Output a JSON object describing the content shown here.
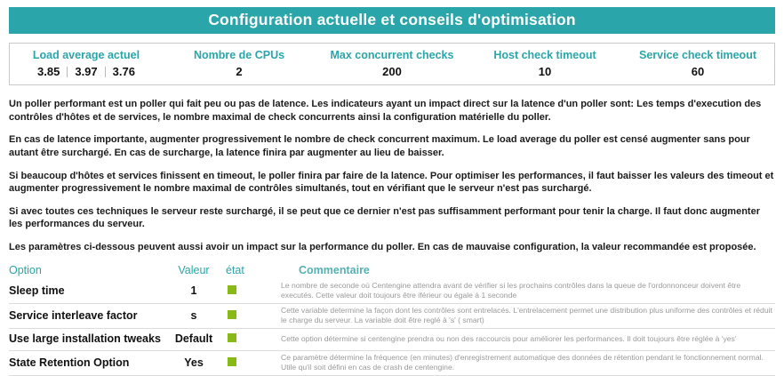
{
  "header": {
    "title": "Configuration actuelle et conseils d'optimisation"
  },
  "metrics": {
    "load_average": {
      "label": "Load average actuel",
      "values": [
        "3.85",
        "3.97",
        "3.76"
      ]
    },
    "cpus": {
      "label": "Nombre de CPUs",
      "value": "2"
    },
    "max_checks": {
      "label": "Max concurrent checks",
      "value": "200"
    },
    "host_timeout": {
      "label": "Host check timeout",
      "value": "10"
    },
    "service_timeout": {
      "label": "Service check timeout",
      "value": "60"
    }
  },
  "paragraphs": {
    "p1": "Un poller performant est un poller qui fait peu ou pas de latence. Les indicateurs ayant un impact direct sur la latence d'un poller sont: Les temps d'execution des contrôles d'hôtes et de services, le nombre maximal de check concurrents ainsi la configuration matérielle du poller.",
    "p2": "En cas de latence importante, augmenter progressivement le nombre de check concurrent maximum. Le load average du poller est censé augmenter sans pour autant être surchargé. En cas de surcharge, la latence finira par augmenter au lieu de baisser.",
    "p3": "Si beaucoup d'hôtes et services finissent en timeout, le poller finira par faire de la latence. Pour optimiser les performances, il faut baisser les valeurs des timeout et augmenter progressivement le nombre maximal de contrôles simultanés, tout en vérifiant que le serveur n'est pas surchargé.",
    "p4": "Si avec toutes ces techniques le serveur reste surchargé, il se peut que ce dernier n'est pas suffisamment performant pour tenir la charge. Il faut donc augmenter les performances du serveur.",
    "p5": "Les paramètres ci-dessous peuvent aussi avoir un impact sur la performance du poller. En cas de mauvaise configuration, la valeur recommandée est proposée."
  },
  "options": {
    "headers": {
      "option": "Option",
      "valeur": "Valeur",
      "etat": "état",
      "commentaire": "Commentaire"
    },
    "rows": [
      {
        "option": "Sleep time",
        "valeur": "1",
        "status": "ok",
        "commentaire": "Le nombre de seconde où Centengine attendra avant de vérifier si les prochains contrôles dans la queue de l'ordonnonceur doivent être executés. Cette valeur doit toujours être iférieur ou égale à 1 seconde"
      },
      {
        "option": "Service interleave factor",
        "valeur": "s",
        "status": "ok",
        "commentaire": "Cette variable determine la façon dont les contrôles sont entrelacés. L'entrelacement permet une distribution plus uniforme des contrôles et réduit le charge du serveur. La variable doit être reglé à 's' ( smart)"
      },
      {
        "option": "Use large installation tweaks",
        "valeur": "Default",
        "status": "ok",
        "commentaire": "Cette option détermine si centengine prendra ou non des raccourcis pour améliorer les performances. Il doit toujours être réglée à 'yes'"
      },
      {
        "option": "State Retention Option",
        "valeur": "Yes",
        "status": "ok",
        "commentaire": "Ce paramètre détermine la fréquence (en minutes) d'enregistrement automatique des données de rétention pendant le fonctionnement normal. Utile qu'il soit défini en cas de crash de centengine."
      }
    ]
  },
  "colors": {
    "accent_teal": "#2aa5a9",
    "status_green": "#88b917"
  }
}
